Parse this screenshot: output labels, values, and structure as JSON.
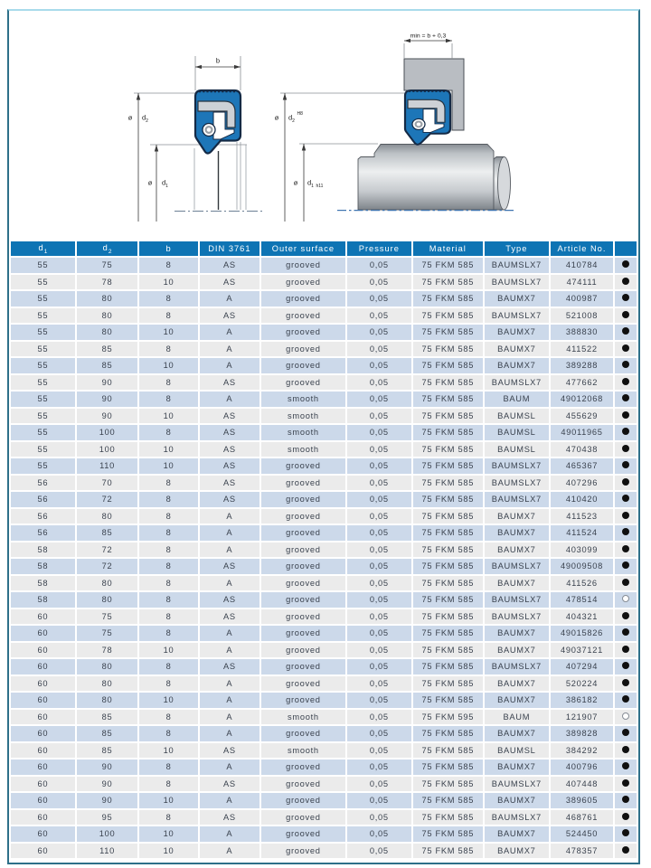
{
  "page": {
    "frame_color": "#2e7089",
    "frame_top_color": "#a9dbeb",
    "background": "#ffffff"
  },
  "drawing": {
    "dia_symbol": "ø",
    "left": {
      "width_label": "b",
      "outer_dia": "d",
      "outer_dia_sub": "2",
      "inner_dia": "d",
      "inner_dia_sub": "1"
    },
    "right": {
      "min_width_label": "min = b + 0,3",
      "outer_dia": "d",
      "outer_dia_sub": "2",
      "outer_dia_tol": "H8",
      "inner_dia": "d",
      "inner_dia_sub": "1",
      "inner_dia_tol": "h11"
    },
    "colors": {
      "seal_body": "#1d76b8",
      "seal_outline": "#142a46",
      "metal_insert": "#cdd1d6",
      "housing": "#b9bdc2",
      "dim_line": "#3a3a3a"
    }
  },
  "table": {
    "headers": [
      {
        "key": "d1",
        "text": "d",
        "sub": "1"
      },
      {
        "key": "d2",
        "text": "d",
        "sub": "2"
      },
      {
        "key": "b",
        "text": "b"
      },
      {
        "key": "din",
        "text": "DIN 3761"
      },
      {
        "key": "outer-surface",
        "text": "Outer surface"
      },
      {
        "key": "pressure",
        "text": "Pressure"
      },
      {
        "key": "material",
        "text": "Material"
      },
      {
        "key": "type",
        "text": "Type"
      },
      {
        "key": "article-no",
        "text": "Article No."
      },
      {
        "key": "availability",
        "text": ""
      }
    ],
    "header_color": "#0e74b4",
    "row_blue": "#ccd9ea",
    "row_gray": "#ebebeb",
    "rows": [
      [
        "55",
        "75",
        "8",
        "AS",
        "grooved",
        "0,05",
        "75 FKM 585",
        "BAUMSLX7",
        "410784",
        "filled"
      ],
      [
        "55",
        "78",
        "10",
        "AS",
        "grooved",
        "0,05",
        "75 FKM 585",
        "BAUMSLX7",
        "474111",
        "filled"
      ],
      [
        "55",
        "80",
        "8",
        "A",
        "grooved",
        "0,05",
        "75 FKM 585",
        "BAUMX7",
        "400987",
        "filled"
      ],
      [
        "55",
        "80",
        "8",
        "AS",
        "grooved",
        "0,05",
        "75 FKM 585",
        "BAUMSLX7",
        "521008",
        "filled"
      ],
      [
        "55",
        "80",
        "10",
        "A",
        "grooved",
        "0,05",
        "75 FKM 585",
        "BAUMX7",
        "388830",
        "filled"
      ],
      [
        "55",
        "85",
        "8",
        "A",
        "grooved",
        "0,05",
        "75 FKM 585",
        "BAUMX7",
        "411522",
        "filled"
      ],
      [
        "55",
        "85",
        "10",
        "A",
        "grooved",
        "0,05",
        "75 FKM 585",
        "BAUMX7",
        "389288",
        "filled"
      ],
      [
        "55",
        "90",
        "8",
        "AS",
        "grooved",
        "0,05",
        "75 FKM 585",
        "BAUMSLX7",
        "477662",
        "filled"
      ],
      [
        "55",
        "90",
        "8",
        "A",
        "smooth",
        "0,05",
        "75 FKM 585",
        "BAUM",
        "49012068",
        "filled"
      ],
      [
        "55",
        "90",
        "10",
        "AS",
        "smooth",
        "0,05",
        "75 FKM 585",
        "BAUMSL",
        "455629",
        "filled"
      ],
      [
        "55",
        "100",
        "8",
        "AS",
        "smooth",
        "0,05",
        "75 FKM 585",
        "BAUMSL",
        "49011965",
        "filled"
      ],
      [
        "55",
        "100",
        "10",
        "AS",
        "smooth",
        "0,05",
        "75 FKM 585",
        "BAUMSL",
        "470438",
        "filled"
      ],
      [
        "55",
        "110",
        "10",
        "AS",
        "grooved",
        "0,05",
        "75 FKM 585",
        "BAUMSLX7",
        "465367",
        "filled"
      ],
      [
        "56",
        "70",
        "8",
        "AS",
        "grooved",
        "0,05",
        "75 FKM 585",
        "BAUMSLX7",
        "407296",
        "filled"
      ],
      [
        "56",
        "72",
        "8",
        "AS",
        "grooved",
        "0,05",
        "75 FKM 585",
        "BAUMSLX7",
        "410420",
        "filled"
      ],
      [
        "56",
        "80",
        "8",
        "A",
        "grooved",
        "0,05",
        "75 FKM 585",
        "BAUMX7",
        "411523",
        "filled"
      ],
      [
        "56",
        "85",
        "8",
        "A",
        "grooved",
        "0,05",
        "75 FKM 585",
        "BAUMX7",
        "411524",
        "filled"
      ],
      [
        "58",
        "72",
        "8",
        "A",
        "grooved",
        "0,05",
        "75 FKM 585",
        "BAUMX7",
        "403099",
        "filled"
      ],
      [
        "58",
        "72",
        "8",
        "AS",
        "grooved",
        "0,05",
        "75 FKM 585",
        "BAUMSLX7",
        "49009508",
        "filled"
      ],
      [
        "58",
        "80",
        "8",
        "A",
        "grooved",
        "0,05",
        "75 FKM 585",
        "BAUMX7",
        "411526",
        "filled"
      ],
      [
        "58",
        "80",
        "8",
        "AS",
        "grooved",
        "0,05",
        "75 FKM 585",
        "BAUMSLX7",
        "478514",
        "open"
      ],
      [
        "60",
        "75",
        "8",
        "AS",
        "grooved",
        "0,05",
        "75 FKM 585",
        "BAUMSLX7",
        "404321",
        "filled"
      ],
      [
        "60",
        "75",
        "8",
        "A",
        "grooved",
        "0,05",
        "75 FKM 585",
        "BAUMX7",
        "49015826",
        "filled"
      ],
      [
        "60",
        "78",
        "10",
        "A",
        "grooved",
        "0,05",
        "75 FKM 585",
        "BAUMX7",
        "49037121",
        "filled"
      ],
      [
        "60",
        "80",
        "8",
        "AS",
        "grooved",
        "0,05",
        "75 FKM 585",
        "BAUMSLX7",
        "407294",
        "filled"
      ],
      [
        "60",
        "80",
        "8",
        "A",
        "grooved",
        "0,05",
        "75 FKM 585",
        "BAUMX7",
        "520224",
        "filled"
      ],
      [
        "60",
        "80",
        "10",
        "A",
        "grooved",
        "0,05",
        "75 FKM 585",
        "BAUMX7",
        "386182",
        "filled"
      ],
      [
        "60",
        "85",
        "8",
        "A",
        "smooth",
        "0,05",
        "75 FKM 595",
        "BAUM",
        "121907",
        "open"
      ],
      [
        "60",
        "85",
        "8",
        "A",
        "grooved",
        "0,05",
        "75 FKM 585",
        "BAUMX7",
        "389828",
        "filled"
      ],
      [
        "60",
        "85",
        "10",
        "AS",
        "smooth",
        "0,05",
        "75 FKM 585",
        "BAUMSL",
        "384292",
        "filled"
      ],
      [
        "60",
        "90",
        "8",
        "A",
        "grooved",
        "0,05",
        "75 FKM 585",
        "BAUMX7",
        "400796",
        "filled"
      ],
      [
        "60",
        "90",
        "8",
        "AS",
        "grooved",
        "0,05",
        "75 FKM 585",
        "BAUMSLX7",
        "407448",
        "filled"
      ],
      [
        "60",
        "90",
        "10",
        "A",
        "grooved",
        "0,05",
        "75 FKM 585",
        "BAUMX7",
        "389605",
        "filled"
      ],
      [
        "60",
        "95",
        "8",
        "AS",
        "grooved",
        "0,05",
        "75 FKM 585",
        "BAUMSLX7",
        "468761",
        "filled"
      ],
      [
        "60",
        "100",
        "10",
        "A",
        "grooved",
        "0,05",
        "75 FKM 585",
        "BAUMX7",
        "524450",
        "filled"
      ],
      [
        "60",
        "110",
        "10",
        "A",
        "grooved",
        "0,05",
        "75 FKM 585",
        "BAUMX7",
        "478357",
        "filled"
      ]
    ]
  }
}
